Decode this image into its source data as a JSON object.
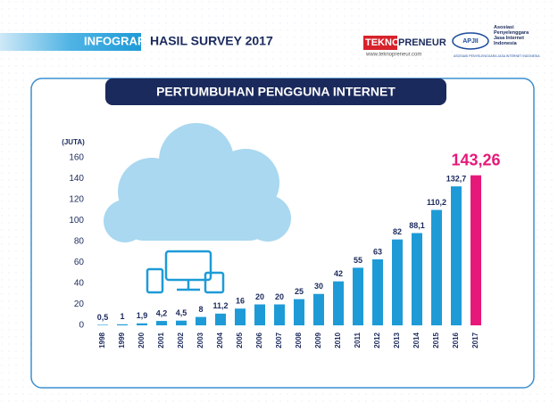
{
  "header": {
    "label": "INFOGRAFIS",
    "title": "HASIL SURVEY 2017",
    "logo_left": {
      "tekno": "TEKNO",
      "preneur": "PRENEUR",
      "url": "www.teknopreneur.com"
    },
    "logo_right": {
      "mark": "APJII",
      "name": "Asosiasi Penyelenggara Jasa Internet Indonesia",
      "caption": "ASOSIASI PENYELENGGARA JASA INTERNET INDONESIA"
    }
  },
  "chart_data": {
    "type": "bar",
    "title": "PERTUMBUHAN PENGGUNA INTERNET",
    "y_label": "(JUTA)",
    "categories": [
      "1998",
      "1999",
      "2000",
      "2001",
      "2002",
      "2003",
      "2004",
      "2005",
      "2006",
      "2007",
      "2008",
      "2009",
      "2010",
      "2011",
      "2012",
      "2013",
      "2014",
      "2015",
      "2016",
      "2017"
    ],
    "values": [
      0.5,
      1,
      1.9,
      4.2,
      4.5,
      8,
      11.2,
      16,
      20,
      20,
      25,
      30,
      42,
      55,
      63,
      82,
      88.1,
      110.2,
      132.7,
      143.26
    ],
    "value_labels": [
      "0,5",
      "1",
      "1,9",
      "4,2",
      "4,5",
      "8",
      "11,2",
      "16",
      "20",
      "20",
      "25",
      "30",
      "42",
      "55",
      "63",
      "82",
      "88,1",
      "110,2",
      "132,7",
      "143,26"
    ],
    "colors": [
      "#1e9bd7",
      "#1e9bd7",
      "#1e9bd7",
      "#1e9bd7",
      "#1e9bd7",
      "#1e9bd7",
      "#1e9bd7",
      "#1e9bd7",
      "#1e9bd7",
      "#1e9bd7",
      "#1e9bd7",
      "#1e9bd7",
      "#1e9bd7",
      "#1e9bd7",
      "#1e9bd7",
      "#1e9bd7",
      "#1e9bd7",
      "#1e9bd7",
      "#1e9bd7",
      "#e6197a"
    ],
    "ylim": [
      0,
      160
    ],
    "yticks": [
      0,
      20,
      40,
      60,
      80,
      100,
      120,
      140,
      160
    ],
    "grid": false
  }
}
